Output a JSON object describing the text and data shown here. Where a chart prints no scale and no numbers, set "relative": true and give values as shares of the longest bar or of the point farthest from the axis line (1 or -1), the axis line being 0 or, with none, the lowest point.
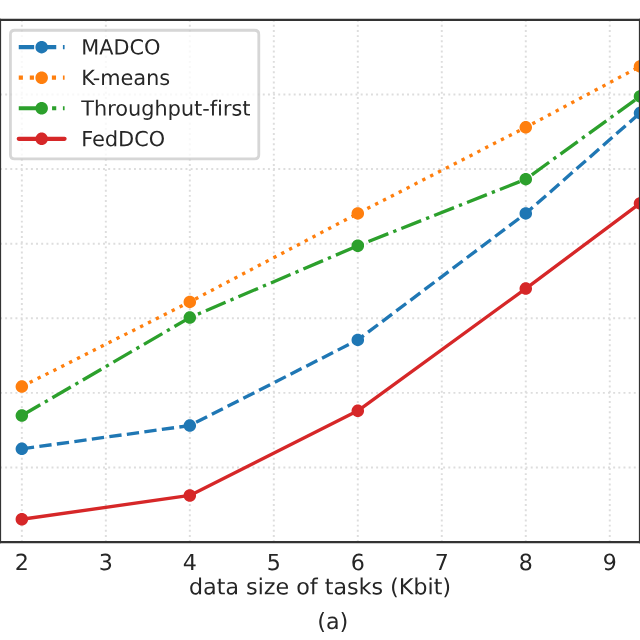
{
  "chart_data": {
    "type": "line",
    "relative": true,
    "xlabel": "data size of tasks (Kbit)",
    "annotations": [
      "(a)"
    ],
    "xlim": [
      1.74,
      9.36
    ],
    "xticks": [
      2,
      3,
      4,
      5,
      6,
      7,
      8,
      9
    ],
    "grid": true,
    "legend": "top left",
    "marker": "circle",
    "series": [
      {
        "name": "MADCO",
        "color": "#1f77b4",
        "line_style": "dashed",
        "x": [
          2,
          4,
          6,
          8,
          9.36
        ],
        "values": [
          0.196,
          0.245,
          0.425,
          0.691,
          0.902
        ]
      },
      {
        "name": "K-means",
        "color": "#ff7f0e",
        "line_style": "dotted",
        "x": [
          2,
          4,
          6,
          8,
          9.36
        ],
        "values": [
          0.327,
          0.505,
          0.691,
          0.872,
          1
        ]
      },
      {
        "name": "Throughput-first",
        "color": "#2ca02c",
        "line_style": "dashdot",
        "x": [
          2,
          4,
          6,
          8,
          9.36
        ],
        "values": [
          0.266,
          0.472,
          0.623,
          0.763,
          0.937
        ]
      },
      {
        "name": "FedDCO",
        "color": "#d62728",
        "line_style": "solid",
        "x": [
          2,
          4,
          6,
          8,
          9.36
        ],
        "values": [
          0.048,
          0.098,
          0.276,
          0.533,
          0.712
        ]
      }
    ]
  }
}
